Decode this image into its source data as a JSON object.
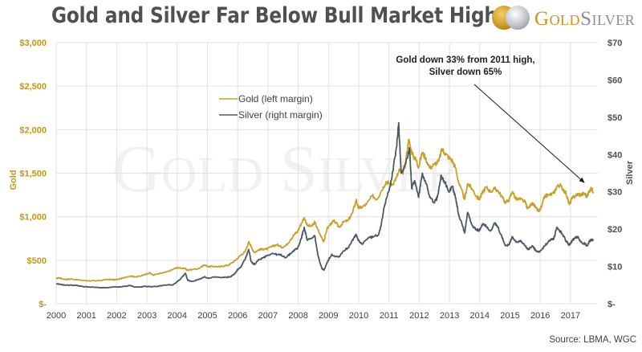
{
  "header": {
    "title": "Gold and Silver Far Below Bull Market Highs",
    "logo": {
      "icon": "gold-silver-coins-icon",
      "text_gold": "Gold",
      "text_silver": "Silver"
    }
  },
  "colors": {
    "gold": "#c9a02b",
    "silver": "#4d5866",
    "grid": "#e1e1e1",
    "left_axis": "#c0961a",
    "right_axis": "#505050"
  },
  "watermark": "GoldSilver",
  "chart_data": {
    "type": "line",
    "title": "Gold and Silver Far Below Bull Market Highs",
    "xlabel": "",
    "ylabel_left": "Gold",
    "ylabel_right": "Silver",
    "x_range": [
      2000,
      2017.75
    ],
    "x_ticks": [
      "2000",
      "2001",
      "2002",
      "2003",
      "2004",
      "2005",
      "2006",
      "2007",
      "2008",
      "2009",
      "2010",
      "2011",
      "2012",
      "2013",
      "2014",
      "2015",
      "2016",
      "2017"
    ],
    "y_left": {
      "range": [
        0,
        3000
      ],
      "ticks": [
        0,
        500,
        1000,
        1500,
        2000,
        2500,
        3000
      ],
      "tick_labels": [
        "$-",
        "$500",
        "$1,000",
        "$1,500",
        "$2,000",
        "$2,500",
        "$3,000"
      ]
    },
    "y_right": {
      "range": [
        0,
        70
      ],
      "ticks": [
        0,
        10,
        20,
        30,
        40,
        50,
        60,
        70
      ],
      "tick_labels": [
        "$-",
        "$10",
        "$20",
        "$30",
        "$40",
        "$50",
        "$60",
        "$70"
      ]
    },
    "grid": true,
    "legend": {
      "placement": "top-center-left",
      "entries": [
        "Gold (left margin)",
        "Silver (right margin)"
      ]
    },
    "annotation": {
      "lines": [
        "Gold down 33% from 2011 high,",
        "Silver down 65%"
      ],
      "arrow_to": {
        "x": 2017.45,
        "y_left": 1320
      }
    },
    "source": "Source: LBMA, WGC",
    "series": [
      {
        "name": "Gold (left margin)",
        "axis": "left",
        "points": [
          [
            2000.0,
            290
          ],
          [
            2000.1,
            300
          ],
          [
            2000.2,
            285
          ],
          [
            2000.35,
            280
          ],
          [
            2000.5,
            285
          ],
          [
            2000.7,
            275
          ],
          [
            2000.9,
            268
          ],
          [
            2001.1,
            265
          ],
          [
            2001.3,
            262
          ],
          [
            2001.5,
            270
          ],
          [
            2001.7,
            280
          ],
          [
            2001.85,
            278
          ],
          [
            2001.95,
            276
          ],
          [
            2002.1,
            285
          ],
          [
            2002.3,
            305
          ],
          [
            2002.45,
            320
          ],
          [
            2002.6,
            310
          ],
          [
            2002.8,
            318
          ],
          [
            2002.95,
            340
          ],
          [
            2003.1,
            355
          ],
          [
            2003.2,
            330
          ],
          [
            2003.4,
            345
          ],
          [
            2003.6,
            360
          ],
          [
            2003.8,
            385
          ],
          [
            2003.95,
            410
          ],
          [
            2004.05,
            415
          ],
          [
            2004.25,
            405
          ],
          [
            2004.35,
            385
          ],
          [
            2004.5,
            395
          ],
          [
            2004.7,
            405
          ],
          [
            2004.9,
            445
          ],
          [
            2005.05,
            425
          ],
          [
            2005.2,
            430
          ],
          [
            2005.4,
            425
          ],
          [
            2005.55,
            435
          ],
          [
            2005.7,
            445
          ],
          [
            2005.85,
            480
          ],
          [
            2005.98,
            515
          ],
          [
            2006.1,
            560
          ],
          [
            2006.25,
            600
          ],
          [
            2006.37,
            715
          ],
          [
            2006.45,
            650
          ],
          [
            2006.55,
            590
          ],
          [
            2006.7,
            620
          ],
          [
            2006.85,
            630
          ],
          [
            2006.98,
            630
          ],
          [
            2007.15,
            660
          ],
          [
            2007.3,
            680
          ],
          [
            2007.45,
            650
          ],
          [
            2007.6,
            670
          ],
          [
            2007.75,
            740
          ],
          [
            2007.88,
            800
          ],
          [
            2007.98,
            830
          ],
          [
            2008.1,
            920
          ],
          [
            2008.2,
            990
          ],
          [
            2008.3,
            900
          ],
          [
            2008.45,
            890
          ],
          [
            2008.55,
            940
          ],
          [
            2008.65,
            850
          ],
          [
            2008.8,
            740
          ],
          [
            2008.85,
            720
          ],
          [
            2008.95,
            860
          ],
          [
            2009.1,
            930
          ],
          [
            2009.2,
            950
          ],
          [
            2009.35,
            880
          ],
          [
            2009.5,
            940
          ],
          [
            2009.65,
            955
          ],
          [
            2009.8,
            1050
          ],
          [
            2009.92,
            1200
          ],
          [
            2009.98,
            1100
          ],
          [
            2010.1,
            1110
          ],
          [
            2010.25,
            1140
          ],
          [
            2010.45,
            1240
          ],
          [
            2010.6,
            1200
          ],
          [
            2010.75,
            1300
          ],
          [
            2010.9,
            1400
          ],
          [
            2010.98,
            1390
          ],
          [
            2011.1,
            1370
          ],
          [
            2011.25,
            1450
          ],
          [
            2011.35,
            1540
          ],
          [
            2011.45,
            1500
          ],
          [
            2011.55,
            1620
          ],
          [
            2011.65,
            1890
          ],
          [
            2011.72,
            1780
          ],
          [
            2011.8,
            1700
          ],
          [
            2011.9,
            1650
          ],
          [
            2011.98,
            1570
          ],
          [
            2012.1,
            1740
          ],
          [
            2012.2,
            1680
          ],
          [
            2012.35,
            1560
          ],
          [
            2012.5,
            1600
          ],
          [
            2012.65,
            1640
          ],
          [
            2012.75,
            1780
          ],
          [
            2012.85,
            1730
          ],
          [
            2012.98,
            1680
          ],
          [
            2013.1,
            1640
          ],
          [
            2013.2,
            1560
          ],
          [
            2013.3,
            1400
          ],
          [
            2013.45,
            1250
          ],
          [
            2013.5,
            1200
          ],
          [
            2013.6,
            1380
          ],
          [
            2013.75,
            1320
          ],
          [
            2013.9,
            1230
          ],
          [
            2013.98,
            1200
          ],
          [
            2014.1,
            1280
          ],
          [
            2014.2,
            1340
          ],
          [
            2014.35,
            1290
          ],
          [
            2014.5,
            1320
          ],
          [
            2014.6,
            1300
          ],
          [
            2014.75,
            1220
          ],
          [
            2014.85,
            1160
          ],
          [
            2014.98,
            1200
          ],
          [
            2015.08,
            1290
          ],
          [
            2015.2,
            1200
          ],
          [
            2015.35,
            1200
          ],
          [
            2015.5,
            1170
          ],
          [
            2015.58,
            1090
          ],
          [
            2015.75,
            1160
          ],
          [
            2015.85,
            1100
          ],
          [
            2015.96,
            1060
          ],
          [
            2016.05,
            1120
          ],
          [
            2016.15,
            1240
          ],
          [
            2016.3,
            1250
          ],
          [
            2016.45,
            1270
          ],
          [
            2016.55,
            1350
          ],
          [
            2016.65,
            1360
          ],
          [
            2016.75,
            1320
          ],
          [
            2016.85,
            1270
          ],
          [
            2016.96,
            1140
          ],
          [
            2017.05,
            1210
          ],
          [
            2017.15,
            1240
          ],
          [
            2017.25,
            1260
          ],
          [
            2017.35,
            1250
          ],
          [
            2017.45,
            1270
          ],
          [
            2017.55,
            1230
          ],
          [
            2017.62,
            1300
          ],
          [
            2017.7,
            1320
          ],
          [
            2017.75,
            1290
          ]
        ]
      },
      {
        "name": "Silver (right margin)",
        "axis": "right",
        "points": [
          [
            2000.0,
            5.3
          ],
          [
            2000.15,
            5.2
          ],
          [
            2000.3,
            5.0
          ],
          [
            2000.5,
            5.0
          ],
          [
            2000.7,
            4.9
          ],
          [
            2000.9,
            4.6
          ],
          [
            2001.1,
            4.5
          ],
          [
            2001.3,
            4.4
          ],
          [
            2001.5,
            4.3
          ],
          [
            2001.7,
            4.3
          ],
          [
            2001.9,
            4.5
          ],
          [
            2002.1,
            4.5
          ],
          [
            2002.3,
            4.7
          ],
          [
            2002.45,
            4.9
          ],
          [
            2002.6,
            4.5
          ],
          [
            2002.8,
            4.5
          ],
          [
            2002.95,
            4.7
          ],
          [
            2003.1,
            4.6
          ],
          [
            2003.3,
            4.6
          ],
          [
            2003.5,
            4.9
          ],
          [
            2003.7,
            5.1
          ],
          [
            2003.85,
            5.0
          ],
          [
            2003.98,
            5.8
          ],
          [
            2004.1,
            6.5
          ],
          [
            2004.27,
            8.2
          ],
          [
            2004.35,
            6.3
          ],
          [
            2004.5,
            6.0
          ],
          [
            2004.7,
            6.5
          ],
          [
            2004.9,
            7.2
          ],
          [
            2005.05,
            6.8
          ],
          [
            2005.25,
            7.2
          ],
          [
            2005.45,
            7.0
          ],
          [
            2005.6,
            7.1
          ],
          [
            2005.75,
            7.2
          ],
          [
            2005.9,
            8.0
          ],
          [
            2005.98,
            9.0
          ],
          [
            2006.1,
            9.8
          ],
          [
            2006.25,
            12.0
          ],
          [
            2006.36,
            14.6
          ],
          [
            2006.45,
            11.2
          ],
          [
            2006.55,
            10.5
          ],
          [
            2006.7,
            11.8
          ],
          [
            2006.85,
            12.4
          ],
          [
            2006.98,
            13.0
          ],
          [
            2007.15,
            13.5
          ],
          [
            2007.3,
            13.2
          ],
          [
            2007.45,
            13.0
          ],
          [
            2007.6,
            12.4
          ],
          [
            2007.75,
            13.5
          ],
          [
            2007.9,
            14.6
          ],
          [
            2007.98,
            14.8
          ],
          [
            2008.1,
            17.5
          ],
          [
            2008.2,
            20.5
          ],
          [
            2008.3,
            17.0
          ],
          [
            2008.45,
            17.5
          ],
          [
            2008.55,
            18.2
          ],
          [
            2008.65,
            13.0
          ],
          [
            2008.78,
            9.5
          ],
          [
            2008.85,
            9.0
          ],
          [
            2008.95,
            11.0
          ],
          [
            2009.1,
            13.2
          ],
          [
            2009.2,
            12.8
          ],
          [
            2009.35,
            12.6
          ],
          [
            2009.5,
            14.2
          ],
          [
            2009.65,
            15.0
          ],
          [
            2009.8,
            17.2
          ],
          [
            2009.92,
            18.5
          ],
          [
            2009.98,
            17.0
          ],
          [
            2010.1,
            16.0
          ],
          [
            2010.3,
            17.6
          ],
          [
            2010.5,
            18.0
          ],
          [
            2010.65,
            18.5
          ],
          [
            2010.72,
            20.5
          ],
          [
            2010.85,
            26.0
          ],
          [
            2010.98,
            30.0
          ],
          [
            2011.1,
            34.0
          ],
          [
            2011.25,
            42.0
          ],
          [
            2011.32,
            48.5
          ],
          [
            2011.4,
            35.0
          ],
          [
            2011.5,
            36.5
          ],
          [
            2011.6,
            39.0
          ],
          [
            2011.68,
            41.5
          ],
          [
            2011.75,
            31.0
          ],
          [
            2011.85,
            33.0
          ],
          [
            2011.98,
            28.5
          ],
          [
            2012.1,
            35.0
          ],
          [
            2012.2,
            33.0
          ],
          [
            2012.35,
            28.5
          ],
          [
            2012.5,
            27.0
          ],
          [
            2012.6,
            28.5
          ],
          [
            2012.72,
            34.5
          ],
          [
            2012.85,
            32.5
          ],
          [
            2012.98,
            30.0
          ],
          [
            2013.1,
            31.5
          ],
          [
            2013.2,
            28.5
          ],
          [
            2013.3,
            24.0
          ],
          [
            2013.45,
            20.5
          ],
          [
            2013.5,
            19.0
          ],
          [
            2013.6,
            24.5
          ],
          [
            2013.75,
            21.0
          ],
          [
            2013.9,
            19.8
          ],
          [
            2013.98,
            19.5
          ],
          [
            2014.1,
            21.5
          ],
          [
            2014.2,
            21.0
          ],
          [
            2014.35,
            19.5
          ],
          [
            2014.5,
            21.5
          ],
          [
            2014.6,
            20.5
          ],
          [
            2014.75,
            17.5
          ],
          [
            2014.85,
            15.5
          ],
          [
            2014.98,
            16.0
          ],
          [
            2015.08,
            18.0
          ],
          [
            2015.2,
            16.5
          ],
          [
            2015.35,
            17.0
          ],
          [
            2015.5,
            15.6
          ],
          [
            2015.6,
            14.5
          ],
          [
            2015.75,
            15.5
          ],
          [
            2015.85,
            14.2
          ],
          [
            2015.96,
            13.8
          ],
          [
            2016.05,
            14.5
          ],
          [
            2016.15,
            15.5
          ],
          [
            2016.3,
            17.0
          ],
          [
            2016.45,
            17.5
          ],
          [
            2016.55,
            20.5
          ],
          [
            2016.65,
            19.5
          ],
          [
            2016.75,
            18.5
          ],
          [
            2016.85,
            16.8
          ],
          [
            2016.96,
            15.8
          ],
          [
            2017.05,
            16.8
          ],
          [
            2017.15,
            17.8
          ],
          [
            2017.25,
            18.0
          ],
          [
            2017.35,
            16.5
          ],
          [
            2017.45,
            16.2
          ],
          [
            2017.55,
            15.5
          ],
          [
            2017.62,
            16.8
          ],
          [
            2017.7,
            17.2
          ],
          [
            2017.75,
            16.8
          ]
        ]
      }
    ]
  }
}
